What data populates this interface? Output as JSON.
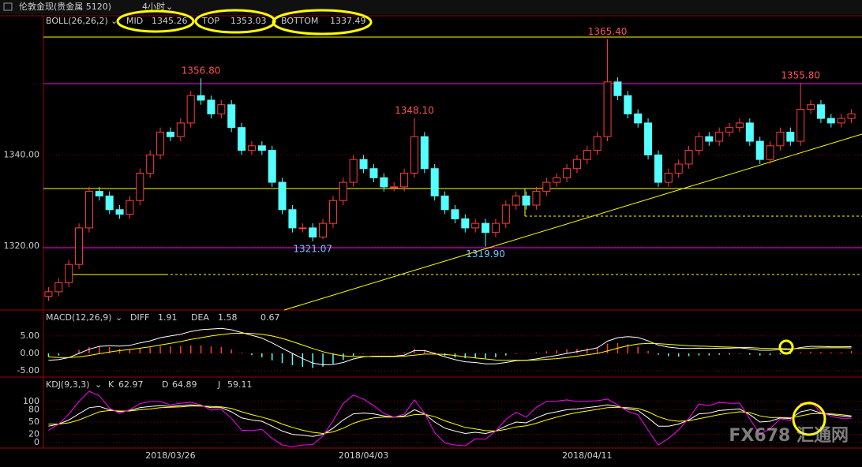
{
  "header": {
    "title": "伦敦金现(贵金属 5120)",
    "period": "4小时"
  },
  "watermark": "FX678 汇通网",
  "chart_data": [
    {
      "type": "candlestick",
      "indicator": "BOLL(26,26,2)",
      "boll": [
        {
          "name": "MID",
          "value": 1345.26,
          "color": "#ffffff"
        },
        {
          "name": "TOP",
          "value": 1353.03,
          "color": "#ffd700"
        },
        {
          "name": "BOTTOM",
          "value": 1337.49,
          "color": "#ff00ff"
        }
      ],
      "categories": [
        null,
        null,
        null,
        null,
        null,
        null,
        null,
        null,
        null,
        null,
        null,
        null,
        "2018/03/26",
        null,
        null,
        null,
        null,
        null,
        null,
        null,
        null,
        null,
        null,
        null,
        null,
        null,
        null,
        null,
        null,
        null,
        null,
        "2018/04/03",
        null,
        null,
        null,
        null,
        null,
        null,
        null,
        null,
        null,
        null,
        null,
        null,
        null,
        null,
        null,
        null,
        null,
        null,
        null,
        null,
        null,
        "2018/04/11",
        null,
        null,
        null,
        null,
        null,
        null,
        null,
        null,
        null,
        null,
        null,
        null,
        null,
        null,
        null,
        null,
        null,
        null,
        null,
        null,
        null,
        null,
        null,
        null,
        null,
        null
      ],
      "open": [
        1309,
        1310,
        1312,
        1316,
        1324,
        1332,
        1331,
        1328,
        1327,
        1330,
        1336,
        1340,
        1345,
        1344,
        1347,
        1353,
        1352,
        1349,
        1351,
        1346,
        1341,
        1342,
        1341,
        1334,
        1328,
        1324,
        1324,
        1322,
        1325,
        1330,
        1334,
        1339,
        1337,
        1335,
        1333,
        1333,
        1336,
        1344,
        1337,
        1331,
        1328,
        1326,
        1324,
        1325,
        1323,
        1325,
        1329,
        1331,
        1329,
        1332,
        1334,
        1335,
        1337,
        1339,
        1341,
        1344,
        1356,
        1353,
        1349,
        1347,
        1340,
        1334,
        1336,
        1338,
        1341,
        1344,
        1343,
        1345,
        1346,
        1347,
        1343,
        1339,
        1342,
        1345,
        1343,
        1350,
        1351,
        1348,
        1347,
        1348
      ],
      "high": [
        1311,
        1313,
        1317,
        1325,
        1333,
        1333,
        1332,
        1329,
        1331,
        1337,
        1341,
        1346,
        1346,
        1348,
        1354,
        1356.8,
        1353,
        1352,
        1352,
        1347,
        1343,
        1343,
        1342,
        1335,
        1329,
        1325,
        1325,
        1326,
        1331,
        1335,
        1340,
        1340,
        1338,
        1336,
        1334,
        1337,
        1348.1,
        1345,
        1338,
        1332,
        1329,
        1327,
        1326,
        1326,
        1326,
        1330,
        1332,
        1332,
        1333,
        1335,
        1336,
        1338,
        1340,
        1342,
        1345,
        1365.4,
        1357,
        1354,
        1350,
        1348,
        1341,
        1337,
        1339,
        1342,
        1345,
        1345,
        1346,
        1347,
        1348,
        1348,
        1344,
        1343,
        1346,
        1346,
        1355.8,
        1352,
        1352,
        1349,
        1349,
        1350
      ],
      "low": [
        1308,
        1309,
        1311,
        1315,
        1323,
        1330,
        1327,
        1326,
        1326,
        1329,
        1335,
        1339,
        1343,
        1343,
        1346,
        1351,
        1348,
        1348,
        1345,
        1340,
        1340,
        1340,
        1333,
        1327,
        1323,
        1323,
        1321.07,
        1321.5,
        1324,
        1329,
        1333,
        1336,
        1334,
        1332,
        1332,
        1332,
        1335,
        1336,
        1330,
        1327,
        1325,
        1323,
        1323,
        1319.9,
        1322,
        1324,
        1328,
        1328,
        1328,
        1331,
        1333,
        1334,
        1336,
        1338,
        1340,
        1343,
        1352,
        1348,
        1346,
        1339,
        1333,
        1333,
        1335,
        1337,
        1340,
        1342,
        1342,
        1344,
        1345,
        1342,
        1338,
        1338,
        1341,
        1342,
        1342,
        1349,
        1347,
        1346,
        1346,
        1347
      ],
      "close": [
        1310,
        1312,
        1316,
        1324,
        1332,
        1331,
        1328,
        1327,
        1330,
        1336,
        1340,
        1345,
        1344,
        1347,
        1353,
        1352,
        1349,
        1351,
        1346,
        1341,
        1342,
        1341,
        1334,
        1328,
        1324,
        1324,
        1322,
        1325,
        1330,
        1334,
        1339,
        1337,
        1335,
        1333,
        1333,
        1336,
        1344,
        1337,
        1331,
        1328,
        1326,
        1324,
        1325,
        1323,
        1325,
        1329,
        1331,
        1329,
        1332,
        1334,
        1335,
        1337,
        1339,
        1341,
        1344,
        1356,
        1353,
        1349,
        1347,
        1340,
        1334,
        1336,
        1338,
        1341,
        1344,
        1343,
        1345,
        1346,
        1347,
        1343,
        1339,
        1342,
        1345,
        1343,
        1350,
        1351,
        1348,
        1347,
        1348,
        1349
      ],
      "up_color": "#ff3c3c",
      "down_color": "#54ffff",
      "ylim": [
        1306,
        1370.5
      ],
      "yticks": [
        {
          "value": 1320,
          "label": "1320.00"
        },
        {
          "value": 1340,
          "label": "1340.00"
        }
      ],
      "annotations": [
        {
          "value": 1356.8,
          "label": "1356.80"
        },
        {
          "value": 1348.1,
          "label": "1348.10"
        },
        {
          "value": 1321.07,
          "label": "1321.07"
        },
        {
          "value": 1319.9,
          "label": "1319.90"
        },
        {
          "value": 1365.4,
          "label": "1365.40"
        },
        {
          "value": 1355.8,
          "label": "1355.80"
        }
      ]
    },
    {
      "type": "macd",
      "indicator": "MACD(12,26,9)",
      "series": [
        {
          "name": "DIFF",
          "color": "#ffffff",
          "values": [
            -2,
            -1.8,
            -1.2,
            0,
            1.2,
            2,
            2.2,
            2.1,
            2.3,
            3,
            3.6,
            4.5,
            5,
            5.5,
            6.3,
            6.8,
            7,
            7.2,
            6.8,
            6,
            5.2,
            4.4,
            3,
            1.5,
            0,
            -1.5,
            -2.8,
            -3.3,
            -3.2,
            -2.6,
            -1.6,
            -1,
            -0.8,
            -0.8,
            -0.8,
            -0.5,
            0.8,
            0.8,
            0,
            -1,
            -1.8,
            -2.4,
            -2.6,
            -3,
            -3,
            -2.6,
            -2.1,
            -2,
            -1.6,
            -1.1,
            -0.6,
            0,
            0.5,
            1,
            1.6,
            3.5,
            4.5,
            4.8,
            4.6,
            3.6,
            2.4,
            1.8,
            1.5,
            1.4,
            1.5,
            1.4,
            1.5,
            1.5,
            1.6,
            1.3,
            0.9,
            0.9,
            1.1,
            1.1,
            1.7,
            2,
            2,
            1.9,
            1.9,
            1.91
          ]
        },
        {
          "name": "DEA",
          "color": "#ffff00",
          "values": [
            -1,
            -1.2,
            -1.2,
            -1,
            -0.6,
            -0.1,
            0.4,
            0.8,
            1.1,
            1.5,
            1.9,
            2.4,
            2.9,
            3.4,
            4,
            4.5,
            5,
            5.4,
            5.7,
            5.8,
            5.7,
            5.5,
            5,
            4.3,
            3.4,
            2.4,
            1.4,
            0.5,
            -0.2,
            -0.7,
            -0.9,
            -0.9,
            -0.9,
            -0.9,
            -0.9,
            -0.8,
            -0.5,
            -0.2,
            -0.2,
            -0.3,
            -0.6,
            -1,
            -1.3,
            -1.6,
            -1.9,
            -2,
            -2,
            -2,
            -1.9,
            -1.7,
            -1.5,
            -1.2,
            -0.8,
            -0.4,
            0,
            0.7,
            1.5,
            2.2,
            2.7,
            2.9,
            2.8,
            2.6,
            2.4,
            2.2,
            2.1,
            2,
            1.9,
            1.8,
            1.7,
            1.7,
            1.5,
            1.4,
            1.4,
            1.3,
            1.4,
            1.5,
            1.6,
            1.6,
            1.6,
            1.58
          ]
        }
      ],
      "histogram": {
        "up_color": "#ff3c3c",
        "down_color": "#54ffff",
        "values": [
          -1,
          -0.6,
          0,
          1,
          1.8,
          2.1,
          1.8,
          1.3,
          1.2,
          1.5,
          1.7,
          2.1,
          2.1,
          2.1,
          2.3,
          2.3,
          2,
          1.8,
          1.1,
          0.2,
          -0.5,
          -1.1,
          -2,
          -2.8,
          -3.4,
          -3.9,
          -4.2,
          -3.8,
          -3,
          -1.9,
          -0.7,
          -0.1,
          0.1,
          0.1,
          0.1,
          0.3,
          1.3,
          1,
          0.2,
          -0.7,
          -1.2,
          -1.4,
          -1.3,
          -1.4,
          -1.1,
          -0.6,
          -0.1,
          0,
          0.3,
          0.6,
          0.9,
          1.2,
          1.3,
          1.4,
          1.6,
          2.8,
          3,
          2.6,
          1.9,
          0.7,
          -0.4,
          -0.8,
          -0.9,
          -0.8,
          -0.6,
          -0.6,
          -0.4,
          -0.3,
          -0.1,
          -0.4,
          -0.6,
          -0.5,
          -0.3,
          -0.2,
          0.3,
          0.5,
          0.4,
          0.3,
          0.3,
          0.67
        ]
      },
      "ylim": [
        -6.8,
        12
      ],
      "yticks": [
        {
          "value": 5,
          "label": "5.00"
        },
        {
          "value": 0,
          "label": "0.00"
        },
        {
          "value": -5,
          "label": "-5.00"
        }
      ]
    },
    {
      "type": "kdj",
      "indicator": "KDJ(9,3,3)",
      "series": [
        {
          "name": "K",
          "color": "#ffffff",
          "values": [
            40,
            45,
            55,
            70,
            85,
            88,
            80,
            75,
            78,
            85,
            88,
            90,
            88,
            90,
            92,
            90,
            85,
            85,
            75,
            60,
            55,
            52,
            40,
            28,
            20,
            18,
            15,
            20,
            35,
            55,
            70,
            72,
            70,
            65,
            62,
            65,
            80,
            70,
            50,
            35,
            28,
            22,
            25,
            22,
            28,
            40,
            50,
            48,
            60,
            70,
            75,
            80,
            82,
            85,
            88,
            92,
            88,
            82,
            78,
            60,
            40,
            40,
            45,
            55,
            70,
            72,
            78,
            80,
            82,
            68,
            50,
            52,
            60,
            58,
            75,
            80,
            72,
            68,
            65,
            62.97
          ]
        },
        {
          "name": "D",
          "color": "#ffff00",
          "values": [
            45,
            45,
            48,
            55,
            65,
            75,
            78,
            77,
            77,
            80,
            82,
            85,
            86,
            87,
            89,
            89,
            88,
            87,
            83,
            75,
            68,
            62,
            55,
            45,
            37,
            30,
            25,
            22,
            26,
            35,
            47,
            55,
            60,
            62,
            62,
            63,
            68,
            69,
            63,
            53,
            45,
            37,
            33,
            29,
            28,
            32,
            38,
            41,
            47,
            55,
            62,
            68,
            73,
            77,
            81,
            85,
            86,
            85,
            83,
            75,
            63,
            55,
            52,
            53,
            58,
            63,
            68,
            72,
            75,
            73,
            65,
            61,
            61,
            60,
            65,
            70,
            71,
            70,
            68,
            64.89
          ]
        },
        {
          "name": "J",
          "color": "#ff00ff",
          "values": [
            30,
            45,
            69,
            100,
            125,
            114,
            84,
            71,
            80,
            95,
            100,
            100,
            92,
            96,
            98,
            92,
            79,
            81,
            59,
            30,
            29,
            32,
            10,
            -6,
            -10,
            -6,
            -5,
            16,
            53,
            95,
            116,
            106,
            90,
            71,
            62,
            69,
            104,
            72,
            24,
            -1,
            -6,
            -8,
            9,
            8,
            28,
            56,
            74,
            62,
            86,
            100,
            101,
            104,
            100,
            101,
            102,
            106,
            92,
            76,
            68,
            30,
            -6,
            10,
            31,
            59,
            94,
            90,
            98,
            96,
            96,
            58,
            20,
            34,
            58,
            54,
            95,
            100,
            74,
            64,
            59,
            59.11
          ]
        }
      ],
      "ylim": [
        -13.5,
        155.8
      ],
      "yticks": [
        100,
        80,
        50,
        20,
        0
      ]
    }
  ]
}
